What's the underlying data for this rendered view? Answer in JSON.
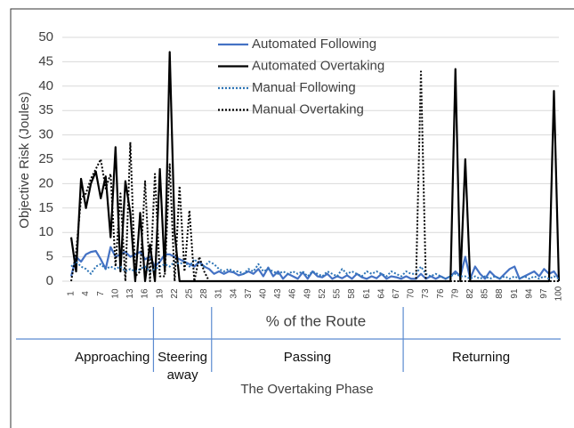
{
  "chart_data": {
    "type": "line",
    "ylabel": "Objective Risk (Joules)",
    "xlabel": "% of the Route",
    "phase_title": "The Overtaking Phase",
    "phases": [
      "Approaching",
      "Steering away",
      "Passing",
      "Returning"
    ],
    "phase_boundaries": [
      17.7,
      29.5,
      68.4
    ],
    "legend": "top-center",
    "grid": true,
    "ylim": [
      0,
      50
    ],
    "yticks": [
      0,
      5,
      10,
      15,
      20,
      25,
      30,
      35,
      40,
      45,
      50
    ],
    "xlim": [
      1,
      100
    ],
    "xticks": [
      1,
      4,
      7,
      10,
      13,
      16,
      19,
      22,
      25,
      28,
      31,
      34,
      37,
      40,
      43,
      46,
      49,
      52,
      55,
      58,
      61,
      64,
      67,
      70,
      73,
      76,
      79,
      82,
      85,
      88,
      91,
      94,
      97,
      100
    ],
    "x": [
      1,
      2,
      3,
      4,
      5,
      6,
      7,
      8,
      9,
      10,
      11,
      12,
      13,
      14,
      15,
      16,
      17,
      18,
      19,
      20,
      21,
      22,
      23,
      24,
      25,
      26,
      27,
      28,
      29,
      30,
      31,
      32,
      33,
      34,
      35,
      36,
      37,
      38,
      39,
      40,
      41,
      42,
      43,
      44,
      45,
      46,
      47,
      48,
      49,
      50,
      51,
      52,
      53,
      54,
      55,
      56,
      57,
      58,
      59,
      60,
      61,
      62,
      63,
      64,
      65,
      66,
      67,
      68,
      69,
      70,
      71,
      72,
      73,
      74,
      75,
      76,
      77,
      78,
      79,
      80,
      81,
      82,
      83,
      84,
      85,
      86,
      87,
      88,
      89,
      90,
      91,
      92,
      93,
      94,
      95,
      96,
      97,
      98,
      99,
      100
    ],
    "series": [
      {
        "name": "Automated Following",
        "color": "#4472c4",
        "style": "solid",
        "values": [
          1,
          5,
          4,
          5.5,
          6,
          6.2,
          4.5,
          2.5,
          7,
          5,
          5.5,
          6,
          5,
          5.5,
          6,
          4.5,
          5,
          3,
          4,
          5.5,
          5.5,
          5,
          4.5,
          4,
          3.5,
          3,
          4,
          3,
          2.5,
          1.5,
          2,
          1.5,
          2,
          1.8,
          1.2,
          1.5,
          2,
          1.5,
          2.5,
          1,
          2.8,
          1,
          2,
          0.5,
          1.5,
          1,
          0.5,
          1.8,
          0.5,
          2,
          1,
          0.8,
          1.5,
          0.5,
          1,
          0.6,
          1.2,
          0.5,
          1.5,
          0.8,
          0.5,
          1,
          0.6,
          1.5,
          0.5,
          1,
          0.8,
          0.5,
          1,
          0.5,
          0.5,
          1.5,
          0.5,
          1,
          0.5,
          1,
          0.5,
          1,
          2,
          1,
          5,
          0.5,
          3,
          1.5,
          0.5,
          2,
          1,
          0.5,
          1.5,
          2.5,
          3,
          0.5,
          1,
          1.5,
          2,
          1,
          2.5,
          1.5,
          2,
          0.5
        ]
      },
      {
        "name": "Automated Overtaking",
        "color": "#000000",
        "style": "solid",
        "values": [
          9,
          2,
          21,
          15,
          20,
          22.5,
          17,
          21.5,
          9,
          27.5,
          2,
          20.5,
          14,
          0,
          14,
          0,
          7.5,
          0,
          23,
          2,
          47,
          10,
          0,
          0,
          0,
          0,
          0,
          0,
          0,
          0,
          0,
          0,
          0,
          0,
          0,
          0,
          0,
          0,
          0,
          0,
          0,
          0,
          0,
          0,
          0,
          0,
          0,
          0,
          0,
          0,
          0,
          0,
          0,
          0,
          0,
          0,
          0,
          0,
          0,
          0,
          0,
          0,
          0,
          0,
          0,
          0,
          0,
          0,
          0,
          0,
          0,
          0,
          0,
          0,
          0,
          0,
          0,
          0,
          43.5,
          0,
          25,
          0,
          0,
          0,
          0,
          0,
          0,
          0,
          0,
          0,
          0,
          0,
          0,
          0,
          0,
          0,
          0,
          0,
          39,
          0
        ]
      },
      {
        "name": "Manual Following",
        "color": "#2e75b6",
        "style": "dotted",
        "values": [
          3,
          4,
          3,
          2.5,
          1.5,
          3,
          3.5,
          2.5,
          3,
          2.5,
          3,
          2,
          2.5,
          2,
          2.5,
          3,
          2,
          2.5,
          3,
          3.5,
          3,
          4,
          3.5,
          4,
          3,
          4.5,
          3.5,
          3,
          4,
          3.5,
          2.5,
          2,
          2.5,
          2,
          2,
          1.5,
          2.5,
          2,
          3.5,
          2,
          2.5,
          2,
          1.5,
          2,
          1.5,
          2,
          1.5,
          2,
          1,
          2,
          1.5,
          1,
          2,
          1.5,
          1,
          2.5,
          1.5,
          2,
          1.5,
          1,
          2,
          1.5,
          2,
          1.5,
          1,
          2,
          1.5,
          1,
          2,
          1.5,
          1.5,
          3,
          1.5,
          1,
          1.5,
          1,
          0.5,
          1,
          1.5,
          1,
          1,
          0.5,
          1,
          0.5,
          1,
          0.5,
          1,
          0.5,
          1,
          0.5,
          1,
          0.5,
          1,
          0.5,
          1,
          0.5,
          1,
          0.5,
          1,
          0.5
        ]
      },
      {
        "name": "Manual Overtaking",
        "color": "#000000",
        "style": "dotted",
        "values": [
          0,
          6,
          17,
          18,
          21,
          23,
          25,
          19,
          22,
          3,
          18,
          0,
          28.5,
          1,
          2,
          20.5,
          0,
          22,
          1,
          1,
          24,
          0,
          19.5,
          2,
          14.5,
          0,
          5,
          2,
          0,
          0,
          0,
          0,
          0,
          0,
          0,
          0,
          0,
          0,
          0,
          0,
          0,
          0,
          0,
          0,
          0,
          0,
          0,
          0,
          0,
          0,
          0,
          0,
          0,
          0,
          0,
          0,
          0,
          0,
          0,
          0,
          0,
          0,
          0,
          0,
          0,
          0,
          0,
          0,
          0,
          0,
          0,
          43,
          0,
          0,
          0,
          0,
          0,
          0,
          0,
          0,
          0,
          0,
          0,
          0,
          0,
          0,
          0,
          0,
          0,
          0,
          0,
          0,
          0,
          0,
          0,
          0,
          0,
          0,
          0,
          0
        ]
      }
    ]
  }
}
